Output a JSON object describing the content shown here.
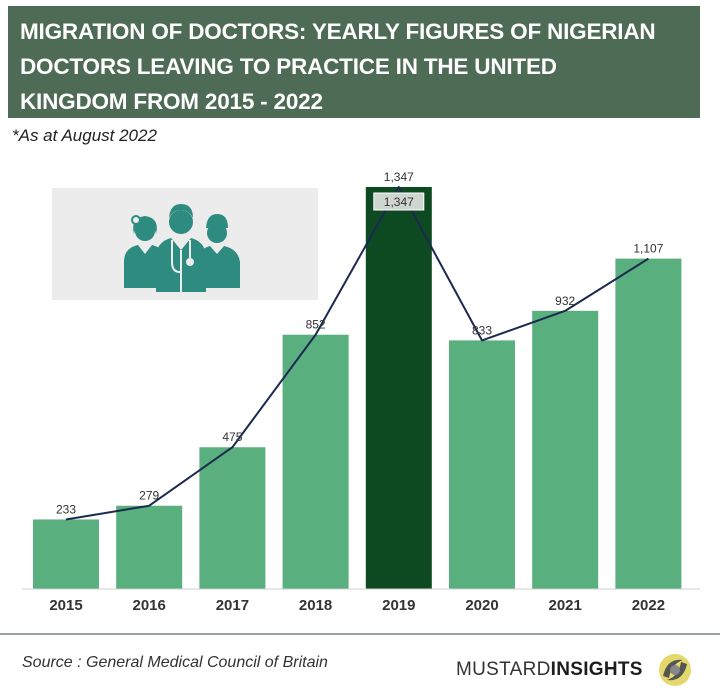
{
  "header": {
    "title_lines": [
      "MIGRATION OF DOCTORS: YEARLY FIGURES OF NIGERIAN",
      "DOCTORS LEAVING TO PRACTICE IN THE UNITED",
      "KINGDOM FROM 2015 - 2022"
    ],
    "subtitle": "*As at August 2022"
  },
  "footer": {
    "source": "Source : General Medical Council of Britain",
    "brand_light": "MUSTARD ",
    "brand_bold": "INSIGHTS"
  },
  "colors": {
    "banner": "#4e6b55",
    "bar": "#5aaf7e",
    "bar_highlight": "#0d4a22",
    "line": "#1b2a4e",
    "icon": "#2e8b80"
  },
  "illustration": "doctors-group-icon",
  "chart_data": {
    "type": "bar",
    "categories": [
      "2015",
      "2016",
      "2017",
      "2018",
      "2019",
      "2020",
      "2021",
      "2022"
    ],
    "values": [
      233,
      279,
      475,
      852,
      1347,
      833,
      932,
      1107
    ],
    "data_labels": [
      "233",
      "279",
      "475",
      "852",
      "1,347",
      "833",
      "932",
      "1,107"
    ],
    "highlight": "2019",
    "highlight_label": "1,347",
    "line_overlay": true,
    "ylim": [
      0,
      1347
    ],
    "grid": false
  }
}
